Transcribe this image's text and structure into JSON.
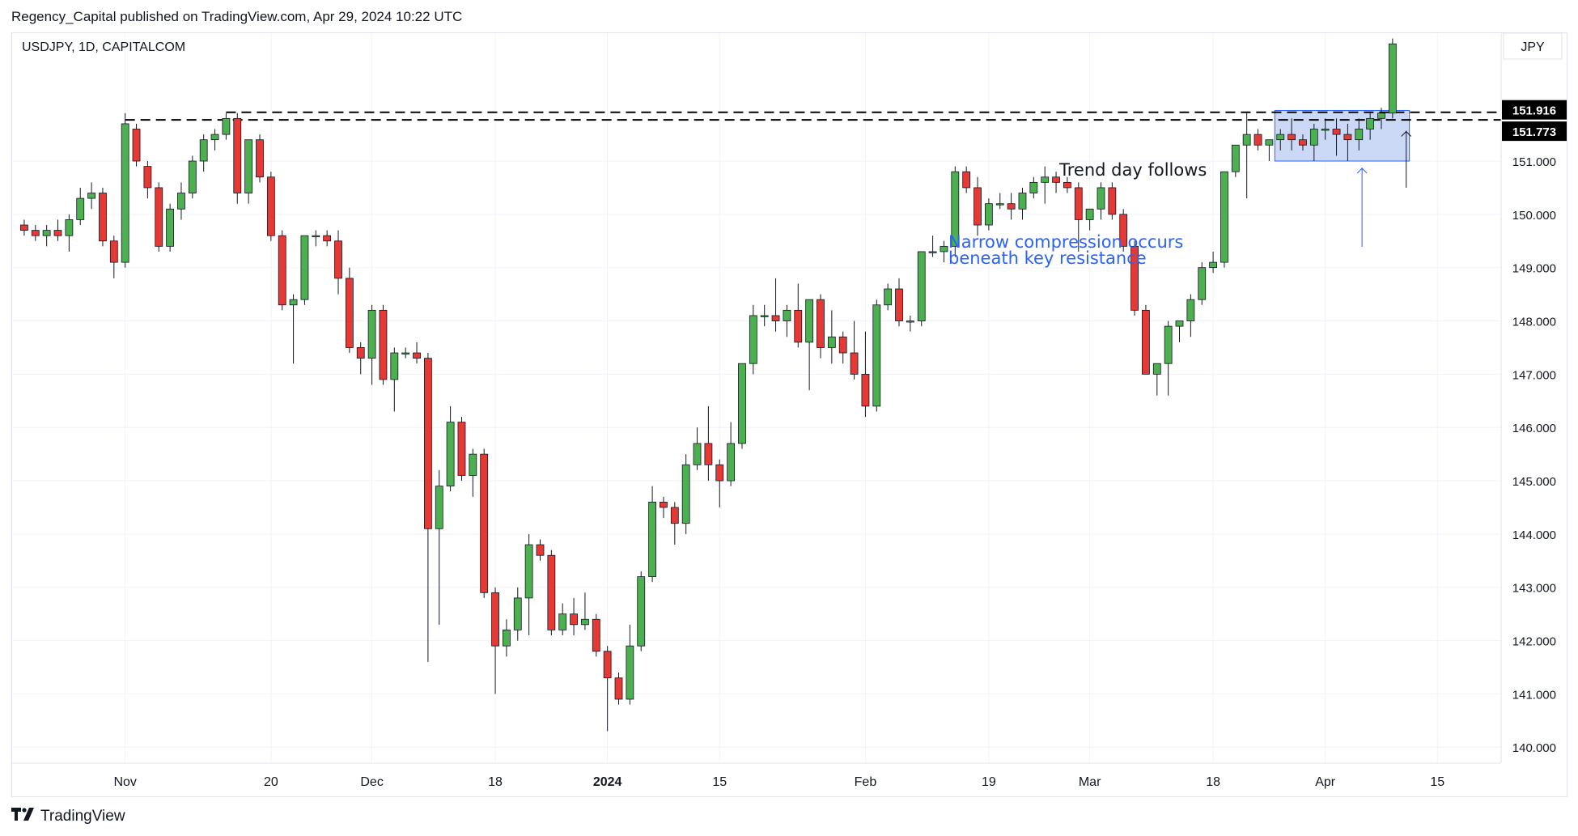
{
  "header": {
    "publisher_text": "Regency_Capital published on TradingView.com, Apr 29, 2024 10:22 UTC"
  },
  "footer": {
    "brand_label": "TradingView"
  },
  "colors": {
    "up": "#4caf50",
    "down": "#e53935",
    "wick": "#131722",
    "annotation_blue": "#2962ff",
    "box_fill": "#c5d4f5",
    "price_label_bg": "#000000"
  },
  "chart_data": {
    "type": "candlestick",
    "symbol_label": "USDJPY, 1D, CAPITALCOM",
    "currency_label": "JPY",
    "ylim": [
      139.7,
      153.4
    ],
    "y_ticks": [
      "140.000",
      "141.000",
      "142.000",
      "143.000",
      "144.000",
      "145.000",
      "146.000",
      "147.000",
      "148.000",
      "149.000",
      "150.000",
      "151.000"
    ],
    "x_ticks": [
      {
        "label": "Nov",
        "index": 9
      },
      {
        "label": "20",
        "index": 22
      },
      {
        "label": "Dec",
        "index": 31
      },
      {
        "label": "18",
        "index": 42
      },
      {
        "label": "2024",
        "index": 52
      },
      {
        "label": "15",
        "index": 62
      },
      {
        "label": "Feb",
        "index": 75
      },
      {
        "label": "19",
        "index": 86
      },
      {
        "label": "Mar",
        "index": 95
      },
      {
        "label": "18",
        "index": 106
      },
      {
        "label": "Apr",
        "index": 116
      },
      {
        "label": "15",
        "index": 126
      }
    ],
    "total_slots": 131,
    "resistance_levels": [
      151.916,
      151.773
    ],
    "resistance_labels": [
      "151.916",
      "151.773"
    ],
    "candles": [
      [
        149.8,
        149.9,
        149.6,
        149.7
      ],
      [
        149.7,
        149.8,
        149.5,
        149.6
      ],
      [
        149.6,
        149.8,
        149.4,
        149.7
      ],
      [
        149.7,
        149.9,
        149.5,
        149.6
      ],
      [
        149.6,
        150.0,
        149.3,
        149.9
      ],
      [
        149.9,
        150.5,
        149.8,
        150.3
      ],
      [
        150.3,
        150.6,
        150.1,
        150.4
      ],
      [
        150.4,
        150.5,
        149.4,
        149.5
      ],
      [
        149.5,
        149.6,
        148.8,
        149.1
      ],
      [
        149.1,
        151.9,
        149.0,
        151.7
      ],
      [
        151.6,
        151.7,
        150.9,
        151.0
      ],
      [
        150.9,
        151.0,
        150.3,
        150.5
      ],
      [
        150.5,
        150.6,
        149.3,
        149.4
      ],
      [
        149.4,
        150.2,
        149.3,
        150.1
      ],
      [
        150.1,
        150.6,
        149.9,
        150.4
      ],
      [
        150.4,
        151.1,
        150.3,
        151.0
      ],
      [
        151.0,
        151.5,
        150.8,
        151.4
      ],
      [
        151.4,
        151.6,
        151.2,
        151.5
      ],
      [
        151.5,
        151.9,
        151.4,
        151.8
      ],
      [
        151.8,
        151.9,
        150.2,
        150.4
      ],
      [
        150.4,
        151.4,
        150.2,
        151.4
      ],
      [
        151.4,
        151.5,
        150.6,
        150.7
      ],
      [
        150.7,
        150.8,
        149.5,
        149.6
      ],
      [
        149.6,
        149.7,
        148.2,
        148.3
      ],
      [
        148.3,
        148.5,
        147.2,
        148.4
      ],
      [
        148.4,
        149.6,
        148.3,
        149.6
      ],
      [
        149.6,
        149.7,
        149.4,
        149.6
      ],
      [
        149.6,
        149.7,
        149.4,
        149.5
      ],
      [
        149.5,
        149.7,
        148.5,
        148.8
      ],
      [
        148.8,
        149.0,
        147.4,
        147.5
      ],
      [
        147.5,
        147.6,
        147.0,
        147.3
      ],
      [
        147.3,
        148.3,
        146.8,
        148.2
      ],
      [
        148.2,
        148.3,
        146.8,
        146.9
      ],
      [
        146.9,
        147.5,
        146.3,
        147.4
      ],
      [
        147.4,
        147.5,
        147.3,
        147.4
      ],
      [
        147.4,
        147.6,
        147.2,
        147.3
      ],
      [
        147.3,
        147.4,
        141.6,
        144.1
      ],
      [
        144.1,
        145.2,
        142.3,
        144.9
      ],
      [
        144.9,
        146.4,
        144.8,
        146.1
      ],
      [
        146.1,
        146.2,
        145.0,
        145.1
      ],
      [
        145.1,
        145.6,
        144.7,
        145.5
      ],
      [
        145.5,
        145.6,
        142.8,
        142.9
      ],
      [
        142.9,
        143.0,
        141.0,
        141.9
      ],
      [
        141.9,
        142.4,
        141.7,
        142.2
      ],
      [
        142.2,
        143.0,
        142.0,
        142.8
      ],
      [
        142.8,
        144.0,
        142.1,
        143.8
      ],
      [
        143.8,
        143.9,
        143.5,
        143.6
      ],
      [
        143.6,
        143.7,
        142.1,
        142.2
      ],
      [
        142.2,
        142.7,
        142.1,
        142.5
      ],
      [
        142.5,
        142.8,
        142.1,
        142.3
      ],
      [
        142.3,
        142.9,
        142.2,
        142.4
      ],
      [
        142.4,
        142.5,
        141.7,
        141.8
      ],
      [
        141.8,
        141.9,
        140.3,
        141.3
      ],
      [
        141.3,
        141.4,
        140.8,
        140.9
      ],
      [
        140.9,
        142.3,
        140.8,
        141.9
      ],
      [
        141.9,
        143.3,
        141.8,
        143.2
      ],
      [
        143.2,
        144.9,
        143.1,
        144.6
      ],
      [
        144.6,
        144.7,
        144.3,
        144.5
      ],
      [
        144.5,
        144.6,
        143.8,
        144.2
      ],
      [
        144.2,
        145.5,
        144.0,
        145.3
      ],
      [
        145.3,
        146.0,
        145.2,
        145.7
      ],
      [
        145.7,
        146.4,
        145.0,
        145.3
      ],
      [
        145.3,
        145.4,
        144.5,
        145.0
      ],
      [
        145.0,
        146.1,
        144.9,
        145.7
      ],
      [
        145.7,
        147.2,
        145.6,
        147.2
      ],
      [
        147.2,
        148.3,
        147.0,
        148.1
      ],
      [
        148.1,
        148.3,
        147.9,
        148.1
      ],
      [
        148.1,
        148.8,
        147.8,
        148.0
      ],
      [
        148.0,
        148.3,
        147.7,
        148.2
      ],
      [
        148.2,
        148.7,
        147.5,
        147.6
      ],
      [
        147.6,
        148.4,
        146.7,
        148.4
      ],
      [
        148.4,
        148.5,
        147.3,
        147.5
      ],
      [
        147.5,
        148.2,
        147.2,
        147.7
      ],
      [
        147.7,
        147.8,
        147.2,
        147.4
      ],
      [
        147.4,
        148.0,
        146.9,
        147.0
      ],
      [
        147.0,
        147.8,
        146.2,
        146.4
      ],
      [
        146.4,
        148.4,
        146.3,
        148.3
      ],
      [
        148.3,
        148.7,
        148.2,
        148.6
      ],
      [
        148.6,
        148.8,
        147.9,
        148.0
      ],
      [
        148.0,
        148.1,
        147.8,
        148.0
      ],
      [
        148.0,
        149.3,
        147.9,
        149.3
      ],
      [
        149.3,
        149.6,
        149.2,
        149.3
      ],
      [
        149.3,
        149.5,
        149.1,
        149.4
      ],
      [
        149.4,
        150.9,
        149.2,
        150.8
      ],
      [
        150.8,
        150.9,
        150.4,
        150.5
      ],
      [
        150.5,
        150.7,
        149.6,
        149.8
      ],
      [
        149.8,
        150.3,
        149.7,
        150.2
      ],
      [
        150.2,
        150.4,
        150.1,
        150.2
      ],
      [
        150.2,
        150.4,
        149.9,
        150.1
      ],
      [
        150.1,
        150.5,
        149.9,
        150.4
      ],
      [
        150.4,
        150.7,
        150.3,
        150.6
      ],
      [
        150.6,
        150.9,
        150.2,
        150.7
      ],
      [
        150.7,
        150.8,
        150.4,
        150.6
      ],
      [
        150.6,
        150.7,
        150.4,
        150.5
      ],
      [
        150.5,
        150.6,
        149.3,
        149.9
      ],
      [
        149.9,
        150.1,
        149.7,
        150.1
      ],
      [
        150.1,
        150.6,
        149.9,
        150.5
      ],
      [
        150.5,
        150.6,
        149.9,
        150.0
      ],
      [
        150.0,
        150.1,
        149.3,
        149.4
      ],
      [
        149.4,
        149.5,
        148.1,
        148.2
      ],
      [
        148.2,
        148.3,
        147.0,
        147.0
      ],
      [
        147.0,
        147.1,
        146.6,
        147.2
      ],
      [
        147.2,
        148.0,
        146.6,
        147.9
      ],
      [
        147.9,
        148.0,
        147.6,
        148.0
      ],
      [
        148.0,
        148.5,
        147.7,
        148.4
      ],
      [
        148.4,
        149.1,
        148.3,
        149.0
      ],
      [
        149.0,
        149.3,
        148.9,
        149.1
      ],
      [
        149.1,
        150.8,
        149.0,
        150.8
      ],
      [
        150.8,
        151.3,
        150.7,
        151.3
      ],
      [
        151.3,
        151.9,
        150.3,
        151.5
      ],
      [
        151.5,
        151.6,
        151.2,
        151.3
      ],
      [
        151.3,
        151.4,
        151.0,
        151.4
      ],
      [
        151.4,
        151.6,
        151.2,
        151.5
      ],
      [
        151.5,
        151.8,
        151.2,
        151.4
      ],
      [
        151.4,
        151.5,
        151.2,
        151.3
      ],
      [
        151.3,
        151.7,
        151.0,
        151.6
      ],
      [
        151.6,
        151.8,
        151.4,
        151.6
      ],
      [
        151.6,
        151.8,
        151.1,
        151.5
      ],
      [
        151.5,
        151.7,
        151.0,
        151.4
      ],
      [
        151.4,
        151.8,
        151.2,
        151.6
      ],
      [
        151.6,
        151.9,
        151.4,
        151.8
      ],
      [
        151.8,
        152.0,
        151.6,
        151.9
      ],
      [
        151.9,
        153.3,
        151.8,
        153.2
      ]
    ],
    "annotations": [
      {
        "text_lines": [
          "Narrow compression occurs",
          "beneath key resistance"
        ],
        "color": "blue"
      },
      {
        "text_lines": [
          "Trend day follows"
        ],
        "color": "black"
      }
    ],
    "compression_box": {
      "start_index": 112,
      "end_index": 123,
      "price_low": 151.0,
      "price_high": 151.95
    }
  }
}
